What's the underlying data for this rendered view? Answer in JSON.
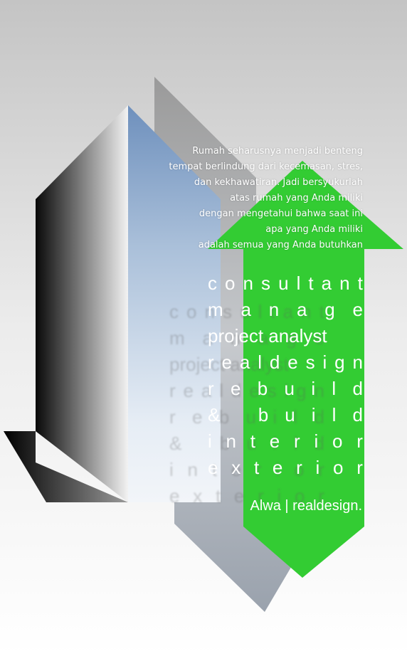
{
  "quote": {
    "lines": [
      "Rumah seharusnya menjadi benteng",
      "tempat berlindung dari kecemasan, stres,",
      "dan kekhawatiran. Jadi bersyukurlah",
      "atas rumah yang Anda miliki",
      "dengan mengetahui bahwa saat ini",
      "apa yang Anda miliki",
      "adalah semua yang Anda butuhkan"
    ]
  },
  "services": [
    "consultant",
    "manage",
    "project analyst",
    "realdesign",
    "rebuild",
    "& build",
    "interior",
    "exterior"
  ],
  "brand": "Alwa | realdesign.",
  "colors": {
    "arrow_green": "#33cc33",
    "background_top": "#c8c8c8",
    "background_bottom": "#ffffff",
    "building_blue": "#6f92bf"
  }
}
